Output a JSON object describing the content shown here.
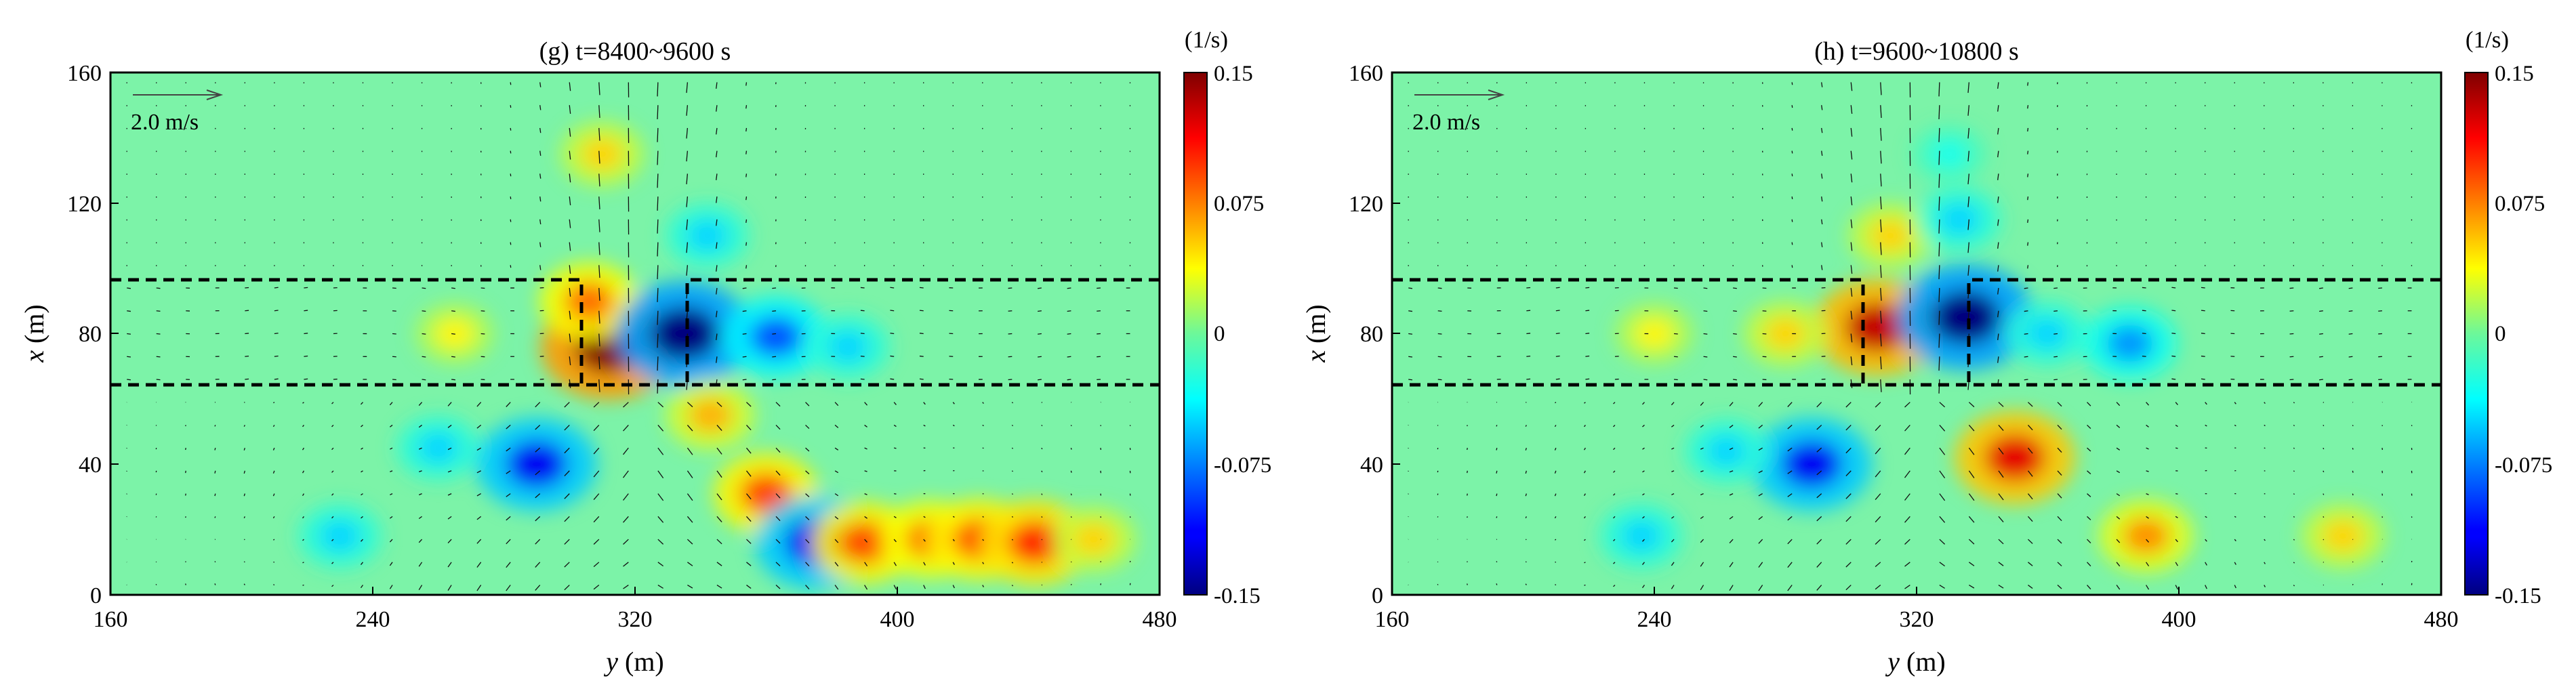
{
  "chart_data": [
    {
      "type": "heatmap",
      "panel": "g",
      "title": "(g) t=8400~9600 s",
      "xlabel_var": "y",
      "xlabel_unit": " (m)",
      "ylabel_var": "x",
      "ylabel_unit": " (m)",
      "xlim": [
        160,
        480
      ],
      "ylim": [
        0,
        160
      ],
      "xticks": [
        160,
        240,
        320,
        400,
        480
      ],
      "yticks": [
        0,
        40,
        80,
        120,
        160
      ],
      "reference_vector": "2.0 m/s",
      "colorbar": {
        "unit": "(1/s)",
        "min": -0.15,
        "max": 0.15,
        "ticks": [
          "0.15",
          "0.075",
          "0",
          "-0.075",
          "-0.15"
        ]
      },
      "blobs": [
        {
          "y": 312,
          "x": 76,
          "value": 0.15
        },
        {
          "y": 306,
          "x": 90,
          "value": 0.08
        },
        {
          "y": 335,
          "x": 80,
          "value": -0.15
        },
        {
          "y": 342,
          "x": 110,
          "value": -0.05
        },
        {
          "y": 363,
          "x": 79,
          "value": -0.09
        },
        {
          "y": 385,
          "x": 76,
          "value": -0.05
        },
        {
          "y": 290,
          "x": 40,
          "value": -0.12
        },
        {
          "y": 260,
          "x": 45,
          "value": -0.05
        },
        {
          "y": 360,
          "x": 31,
          "value": 0.09
        },
        {
          "y": 343,
          "x": 55,
          "value": 0.06
        },
        {
          "y": 375,
          "x": 16,
          "value": -0.12
        },
        {
          "y": 390,
          "x": 16,
          "value": 0.09
        },
        {
          "y": 410,
          "x": 17,
          "value": 0.08
        },
        {
          "y": 425,
          "x": 17,
          "value": 0.09
        },
        {
          "y": 442,
          "x": 16,
          "value": 0.1
        },
        {
          "y": 460,
          "x": 17,
          "value": 0.05
        },
        {
          "y": 310,
          "x": 135,
          "value": 0.05
        },
        {
          "y": 265,
          "x": 80,
          "value": 0.04
        },
        {
          "y": 230,
          "x": 18,
          "value": -0.05
        }
      ]
    },
    {
      "type": "heatmap",
      "panel": "h",
      "title": "(h) t=9600~10800 s",
      "xlabel_var": "y",
      "xlabel_unit": " (m)",
      "ylabel_var": "x",
      "ylabel_unit": " (m)",
      "xlim": [
        160,
        480
      ],
      "ylim": [
        0,
        160
      ],
      "xticks": [
        160,
        240,
        320,
        400,
        480
      ],
      "yticks": [
        0,
        40,
        80,
        120,
        160
      ],
      "reference_vector": "2.0 m/s",
      "colorbar": {
        "unit": "(1/s)",
        "min": -0.15,
        "max": 0.15,
        "ticks": [
          "0.15",
          "0.075",
          "0",
          "-0.075",
          "-0.15"
        ]
      },
      "blobs": [
        {
          "y": 308,
          "x": 82,
          "value": 0.13
        },
        {
          "y": 312,
          "x": 110,
          "value": 0.05
        },
        {
          "y": 335,
          "x": 85,
          "value": -0.15
        },
        {
          "y": 333,
          "x": 115,
          "value": -0.05
        },
        {
          "y": 385,
          "x": 77,
          "value": -0.07
        },
        {
          "y": 360,
          "x": 80,
          "value": -0.05
        },
        {
          "y": 288,
          "x": 40,
          "value": -0.12
        },
        {
          "y": 262,
          "x": 44,
          "value": -0.05
        },
        {
          "y": 350,
          "x": 42,
          "value": 0.12
        },
        {
          "y": 390,
          "x": 18,
          "value": 0.07
        },
        {
          "y": 280,
          "x": 80,
          "value": 0.05
        },
        {
          "y": 240,
          "x": 80,
          "value": 0.04
        },
        {
          "y": 236,
          "x": 18,
          "value": -0.05
        },
        {
          "y": 450,
          "x": 18,
          "value": 0.05
        },
        {
          "y": 330,
          "x": 135,
          "value": -0.03
        }
      ]
    }
  ]
}
